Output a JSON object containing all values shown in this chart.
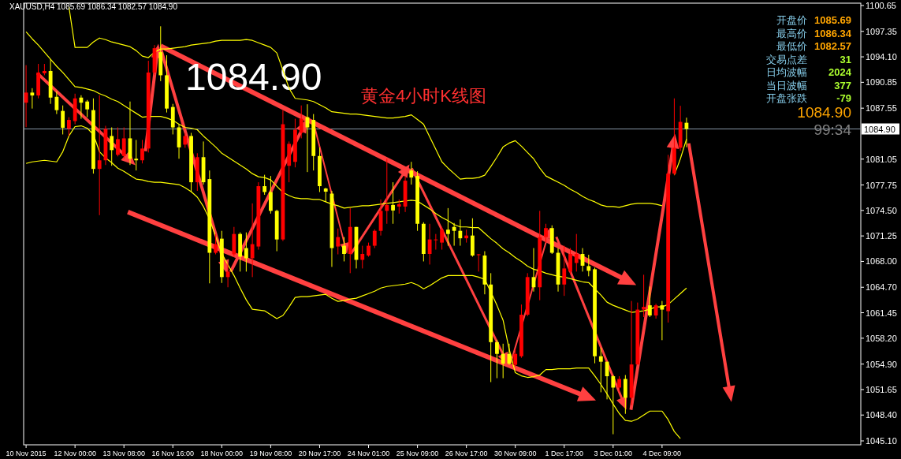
{
  "chart_data": {
    "type": "candlestick",
    "title": "黄金4小时K线图",
    "subtitle": "XAUUSD,H4  1085.69 1086.34 1082.57 1084.90",
    "categories": [
      "10 Nov 2015",
      null,
      null,
      null,
      null,
      null,
      null,
      null,
      "12 Nov 00:00",
      null,
      null,
      null,
      null,
      null,
      null,
      null,
      "13 Nov 08:00",
      null,
      null,
      null,
      null,
      null,
      null,
      null,
      "16 Nov 16:00",
      null,
      null,
      null,
      null,
      null,
      null,
      null,
      "18 Nov 00:00",
      null,
      null,
      null,
      null,
      null,
      null,
      null,
      "19 Nov 08:00",
      null,
      null,
      null,
      null,
      null,
      null,
      null,
      "20 Nov 17:00",
      null,
      null,
      null,
      null,
      null,
      null,
      null,
      "24 Nov 01:00",
      null,
      null,
      null,
      null,
      null,
      null,
      null,
      "25 Nov 09:00",
      null,
      null,
      null,
      null,
      null,
      null,
      null,
      "26 Nov 17:00",
      null,
      null,
      null,
      null,
      null,
      null,
      null,
      "30 Nov 09:00",
      null,
      null,
      null,
      null,
      null,
      null,
      null,
      "1 Dec 17:00",
      null,
      null,
      null,
      null,
      null,
      null,
      null,
      "3 Dec 01:00",
      null,
      null,
      null,
      null,
      null,
      null,
      null,
      "4 Dec 09:00",
      null,
      null,
      null,
      null
    ],
    "ohlc": [
      [
        1088.25,
        1093.04,
        1085.13,
        1089.54
      ],
      [
        1089.54,
        1090.1,
        1087.5,
        1089.17
      ],
      [
        1089.17,
        1093.2,
        1088.8,
        1092.1
      ],
      [
        1092.0,
        1093.2,
        1091.75,
        1092.3
      ],
      [
        1092.3,
        1093.8,
        1088.1,
        1088.9
      ],
      [
        1089.0,
        1089.7,
        1086.8,
        1087.3
      ],
      [
        1087.2,
        1087.9,
        1084.2,
        1085.05
      ],
      [
        1084.94,
        1086.4,
        1084.0,
        1086.05
      ],
      [
        1085.9,
        1089.4,
        1085.5,
        1088.8
      ],
      [
        1088.9,
        1089.2,
        1086.2,
        1088.25
      ],
      [
        1088.4,
        1088.6,
        1086.4,
        1087.4
      ],
      [
        1087.3,
        1088.8,
        1079.2,
        1079.8
      ],
      [
        1079.8,
        1089.2,
        1073.9,
        1080.9
      ],
      [
        1080.9,
        1085.3,
        1080.3,
        1084.9
      ],
      [
        1084.0,
        1085.1,
        1080.2,
        1082.2
      ],
      [
        1081.6,
        1085.1,
        1081.4,
        1083.6
      ],
      [
        1081.45,
        1085.1,
        1081.1,
        1083.7
      ],
      [
        1083.7,
        1088.4,
        1080.3,
        1081.1
      ],
      [
        1081.1,
        1083.5,
        1079.6,
        1080.9
      ],
      [
        1080.9,
        1083.5,
        1080.5,
        1082.4
      ],
      [
        1082.4,
        1093.6,
        1081.9,
        1092.1
      ],
      [
        1092.1,
        1095.6,
        1091.75,
        1095.2
      ],
      [
        1094.7,
        1098.0,
        1091.0,
        1091.75
      ],
      [
        1091.75,
        1094.3,
        1087.0,
        1087.5
      ],
      [
        1087.7,
        1088.1,
        1084.2,
        1085.1
      ],
      [
        1085.1,
        1085.5,
        1081.1,
        1082.55
      ],
      [
        1082.9,
        1084.4,
        1082.5,
        1084.0
      ],
      [
        1084.0,
        1084.4,
        1076.8,
        1078.1
      ],
      [
        1078.1,
        1081.8,
        1077.0,
        1081.3
      ],
      [
        1081.3,
        1083.3,
        1077.8,
        1078.1
      ],
      [
        1078.5,
        1079.6,
        1065.2,
        1069.1
      ],
      [
        1069.1,
        1071.5,
        1068.9,
        1070.2
      ],
      [
        1070.9,
        1071.9,
        1065.25,
        1066.0
      ],
      [
        1066.0,
        1067.8,
        1064.7,
        1066.7
      ],
      [
        1068.9,
        1072.4,
        1068.6,
        1071.5
      ],
      [
        1071.5,
        1071.7,
        1066.7,
        1068.6
      ],
      [
        1069.7,
        1071.7,
        1066.7,
        1068.4
      ],
      [
        1068.4,
        1075.4,
        1066.0,
        1070.2
      ],
      [
        1069.9,
        1078.1,
        1069.5,
        1077.6
      ],
      [
        1077.6,
        1079.05,
        1076.5,
        1076.85
      ],
      [
        1076.85,
        1078.9,
        1074.1,
        1074.45
      ],
      [
        1074.45,
        1074.6,
        1069.3,
        1070.8
      ],
      [
        1070.8,
        1087.3,
        1070.6,
        1085.5
      ],
      [
        1080.2,
        1083.3,
        1078.1,
        1083.0
      ],
      [
        1080.7,
        1086.2,
        1080.0,
        1084.8
      ],
      [
        1084.4,
        1087.9,
        1083.7,
        1086.2
      ],
      [
        1086.4,
        1088.05,
        1079.4,
        1085.1
      ],
      [
        1086.05,
        1086.8,
        1079.6,
        1081.45
      ],
      [
        1081.45,
        1082.55,
        1076.85,
        1077.6
      ],
      [
        1077.3,
        1077.4,
        1075.6,
        1076.9
      ],
      [
        1076.65,
        1077.0,
        1067.3,
        1069.7
      ],
      [
        1069.9,
        1072.2,
        1068.9,
        1071.1
      ],
      [
        1070.0,
        1071.1,
        1068.0,
        1068.95
      ],
      [
        1068.95,
        1074.8,
        1066.5,
        1072.4
      ],
      [
        1072.4,
        1072.4,
        1067.1,
        1068.2
      ],
      [
        1068.2,
        1070.0,
        1067.1,
        1068.95
      ],
      [
        1068.75,
        1070.4,
        1068.6,
        1070.0
      ],
      [
        1070.0,
        1072.1,
        1069.7,
        1071.9
      ],
      [
        1071.9,
        1075.9,
        1071.3,
        1074.45
      ],
      [
        1074.45,
        1081.1,
        1072.8,
        1075.2
      ],
      [
        1075.2,
        1078.1,
        1072.8,
        1074.5
      ],
      [
        1075.0,
        1075.9,
        1074.1,
        1075.3
      ],
      [
        1075.0,
        1078.9,
        1074.3,
        1078.3
      ],
      [
        1079.6,
        1080.7,
        1077.8,
        1078.7
      ],
      [
        1078.9,
        1079.5,
        1071.9,
        1072.8
      ],
      [
        1072.8,
        1073.0,
        1068.0,
        1068.95
      ],
      [
        1068.95,
        1072.8,
        1067.6,
        1070.8
      ],
      [
        1070.7,
        1071.5,
        1069.5,
        1070.8
      ],
      [
        1070.4,
        1072.4,
        1069.5,
        1072.05
      ],
      [
        1072.05,
        1074.8,
        1070.0,
        1071.5
      ],
      [
        1072.4,
        1072.9,
        1070.0,
        1071.9
      ],
      [
        1071.9,
        1073.35,
        1070.0,
        1070.95
      ],
      [
        1070.95,
        1072.05,
        1070.4,
        1071.3
      ],
      [
        1071.3,
        1073.5,
        1068.6,
        1068.75
      ],
      [
        1068.8,
        1068.95,
        1066.7,
        1068.9
      ],
      [
        1068.75,
        1069.3,
        1063.8,
        1065.05
      ],
      [
        1065.05,
        1066.5,
        1052.6,
        1057.7
      ],
      [
        1057.7,
        1058.0,
        1053.1,
        1056.2
      ],
      [
        1056.2,
        1057.5,
        1053.1,
        1054.95
      ],
      [
        1056.2,
        1057.5,
        1054.8,
        1054.95
      ],
      [
        1054.8,
        1056.8,
        1054.6,
        1056.2
      ],
      [
        1055.9,
        1062.5,
        1055.7,
        1061.2
      ],
      [
        1061.2,
        1066.5,
        1061.0,
        1066.0
      ],
      [
        1066.0,
        1069.7,
        1064.15,
        1064.7
      ],
      [
        1064.7,
        1074.45,
        1063.05,
        1071.1
      ],
      [
        1071.1,
        1072.8,
        1070.4,
        1072.25
      ],
      [
        1072.25,
        1072.6,
        1068.95,
        1069.1
      ],
      [
        1069.1,
        1069.7,
        1064.15,
        1065.05
      ],
      [
        1065.05,
        1070.0,
        1063.6,
        1067.1
      ],
      [
        1066.7,
        1069.7,
        1066.35,
        1068.95
      ],
      [
        1067.8,
        1071.5,
        1066.7,
        1068.95
      ],
      [
        1068.95,
        1069.7,
        1066.7,
        1067.45
      ],
      [
        1067.4,
        1068.85,
        1066.1,
        1066.8
      ],
      [
        1067.0,
        1067.2,
        1055.0,
        1055.9
      ],
      [
        1055.9,
        1057.0,
        1051.3,
        1055.2
      ],
      [
        1055.2,
        1055.2,
        1050.4,
        1053.35
      ],
      [
        1053.35,
        1053.5,
        1045.95,
        1051.9
      ],
      [
        1051.9,
        1053.35,
        1051.3,
        1053.0
      ],
      [
        1053.0,
        1053.5,
        1048.55,
        1050.6
      ],
      [
        1050.6,
        1062.95,
        1049.65,
        1054.85
      ],
      [
        1054.85,
        1062.75,
        1054.85,
        1061.85
      ],
      [
        1061.85,
        1066.3,
        1060.9,
        1062.2
      ],
      [
        1062.4,
        1064.8,
        1060.9,
        1061.1
      ],
      [
        1061.1,
        1062.6,
        1060.7,
        1062.4
      ],
      [
        1062.4,
        1062.95,
        1057.95,
        1061.85
      ],
      [
        1061.65,
        1081.6,
        1060.2,
        1079.2
      ],
      [
        1079.2,
        1088.8,
        1079.0,
        1082.5
      ],
      [
        1082.5,
        1087.85,
        1082.1,
        1085.8
      ],
      [
        1085.69,
        1086.34,
        1082.57,
        1084.9
      ]
    ],
    "series": [
      {
        "type": "line",
        "color": "#ffff00",
        "values": [
          null,
          null,
          null,
          null,
          null,
          null,
          null,
          1100.5,
          1095.3,
          1095.3,
          1095.3,
          1096.0,
          1096.5,
          1096.3,
          1096.0,
          1095.8,
          1095.6,
          1095.4,
          1094.9,
          1094.2,
          1094.0,
          1094.7,
          1095.1,
          1095.1,
          1095.2,
          1095.3,
          1095.4,
          1095.6,
          1095.7,
          1095.8,
          1095.9,
          1096.1,
          1096.2,
          1096.2,
          1096.2,
          1096.2,
          1096.3,
          1096.2,
          1095.9,
          1095.6,
          1095.3,
          1094.6,
          1092.4,
          1090.1,
          1088.8,
          1088.7,
          1088.6,
          1088.4,
          1088.0,
          1087.6,
          1087.1,
          1087.0,
          1086.9,
          1086.8,
          1086.8,
          1086.7,
          1086.6,
          1086.5,
          1086.4,
          1086.3,
          1086.3,
          1086.4,
          1086.5,
          1086.7,
          1086.1,
          1085.5,
          1083.9,
          1082.3,
          1080.7,
          1079.9,
          1079.2,
          1078.5,
          1078.6,
          1078.6,
          1078.7,
          1079.0,
          1080.1,
          1081.3,
          1082.6,
          1083.1,
          1083.4,
          1082.7,
          1081.9,
          1081.1,
          1079.9,
          1078.9,
          1078.5,
          1078.1,
          1077.7,
          1077.2,
          1076.8,
          1076.3,
          1075.9,
          1075.6,
          1075.2,
          1075.0,
          1075.0,
          1074.9,
          1075.1,
          1075.3,
          1075.4,
          1075.4,
          1075.4,
          1075.3,
          1075.1,
          null,
          1079.0,
          1081.1,
          1083.6
        ]
      },
      {
        "type": "line",
        "color": "#ffff00",
        "values": [
          1097.3,
          1096.4,
          1095.6,
          1094.7,
          1093.8,
          1092.9,
          1092.1,
          1091.2,
          1090.3,
          1090.2,
          1090.0,
          1089.8,
          1089.4,
          1089.1,
          1088.7,
          1088.4,
          1087.9,
          1087.4,
          1086.9,
          1086.4,
          1086.5,
          1086.5,
          1086.5,
          1086.3,
          1086.0,
          1085.5,
          1085.1,
          1085.0,
          1084.8,
          1084.0,
          1083.3,
          1082.6,
          1081.8,
          1081.3,
          1080.8,
          1080.3,
          1079.8,
          1079.2,
          1078.8,
          1078.7,
          1078.4,
          1077.6,
          1076.8,
          1076.4,
          1076.1,
          1076.0,
          1076.0,
          1075.9,
          1075.9,
          1075.6,
          1075.3,
          1075.1,
          1074.8,
          1074.9,
          1075.0,
          1075.1,
          1075.1,
          1075.2,
          1075.3,
          1075.4,
          1075.5,
          1075.6,
          1075.7,
          1075.8,
          1075.7,
          1075.2,
          1074.7,
          1074.1,
          1073.6,
          1073.2,
          1072.7,
          1072.4,
          1072.4,
          1072.3,
          1072.3,
          1071.6,
          1070.9,
          1070.3,
          1069.6,
          1069.1,
          1068.5,
          1068.0,
          1067.4,
          1067.0,
          1066.8,
          1066.5,
          1066.3,
          1066.1,
          1066.0,
          1065.8,
          1065.6,
          1065.4,
          1065.3,
          1064.5,
          1063.7,
          1062.8,
          1062.4,
          1062.1,
          1061.8,
          1061.5,
          1061.6,
          1061.7,
          1061.9,
          1062.2,
          1062.2,
          1062.5,
          1063.2,
          1063.9,
          1064.6
        ]
      },
      {
        "type": "line",
        "color": "#ffff00",
        "values": [
          1080.5,
          1080.7,
          1080.8,
          1080.9,
          1080.8,
          1080.7,
          1082.0,
          1084.0,
          1085.2,
          1085.3,
          1085.0,
          1084.2,
          1082.0,
          1081.2,
          1080.6,
          1079.9,
          1079.5,
          1079.0,
          1078.5,
          1078.4,
          1078.2,
          1078.1,
          1078.1,
          1078.0,
          1077.9,
          1077.8,
          1077.4,
          1076.9,
          1076.2,
          1075.0,
          1073.4,
          1071.2,
          1069.0,
          1067.6,
          1066.2,
          1064.6,
          1063.1,
          1061.9,
          1061.8,
          1061.7,
          1061.2,
          1060.7,
          1061.1,
          1062.2,
          1063.4,
          1063.5,
          1063.5,
          1063.6,
          1063.7,
          1063.8,
          1063.3,
          1062.9,
          1063.0,
          1063.2,
          1063.3,
          1063.6,
          1063.9,
          1064.2,
          1064.6,
          1064.8,
          1064.9,
          1065.0,
          1065.1,
          1065.3,
          1065.0,
          1064.5,
          1064.9,
          1065.4,
          1065.9,
          1066.2,
          1066.2,
          1066.2,
          1066.2,
          1066.2,
          1066.0,
          1065.7,
          1064.1,
          1062.4,
          1060.5,
          1056.8,
          1053.8,
          1053.4,
          1053.2,
          1053.3,
          1053.5,
          1054.2,
          1054.2,
          1054.3,
          1054.3,
          1054.3,
          1054.4,
          1054.4,
          1054.4,
          1053.4,
          1052.3,
          1051.1,
          1049.8,
          1048.6,
          1047.7,
          1047.6,
          1047.9,
          1048.4,
          1048.9,
          1048.9,
          1048.9,
          1047.8,
          1046.3,
          1045.4,
          null
        ]
      }
    ],
    "ylim": [
      1044.6,
      1100.95
    ],
    "yticks": [
      {
        "value": 1100.65,
        "label": "1100.65"
      },
      {
        "value": 1097.35,
        "label": "1097.35"
      },
      {
        "value": 1094.1,
        "label": "1094.10"
      },
      {
        "value": 1090.85,
        "label": "1090.85"
      },
      {
        "value": 1087.55,
        "label": "1087.55"
      },
      {
        "value": 1081.05,
        "label": "1081.05"
      },
      {
        "value": 1077.75,
        "label": "1077.75"
      },
      {
        "value": 1074.5,
        "label": "1074.50"
      },
      {
        "value": 1071.25,
        "label": "1071.25"
      },
      {
        "value": 1068.0,
        "label": "1068.00"
      },
      {
        "value": 1064.7,
        "label": "1064.70"
      },
      {
        "value": 1061.45,
        "label": "1061.45"
      },
      {
        "value": 1058.2,
        "label": "1058.20"
      },
      {
        "value": 1054.9,
        "label": "1054.90"
      },
      {
        "value": 1051.65,
        "label": "1051.65"
      },
      {
        "value": 1048.4,
        "label": "1048.40"
      },
      {
        "value": 1045.1,
        "label": "1045.10"
      }
    ],
    "ref_lines": [
      {
        "axis": "y",
        "value": 1084.9,
        "label": "1084.90",
        "color": "#8595a5"
      }
    ],
    "annotations": [
      {
        "text": "1084.90",
        "y": 1084.9
      },
      "开盘价",
      "1085.69",
      "最高价",
      "1086.34",
      "最低价",
      "1082.57",
      "交易点差",
      "31",
      "日均波幅",
      "2024",
      "当日波幅",
      "377",
      "开盘张跌",
      "-79",
      "1084.90",
      "99:34"
    ]
  }
}
